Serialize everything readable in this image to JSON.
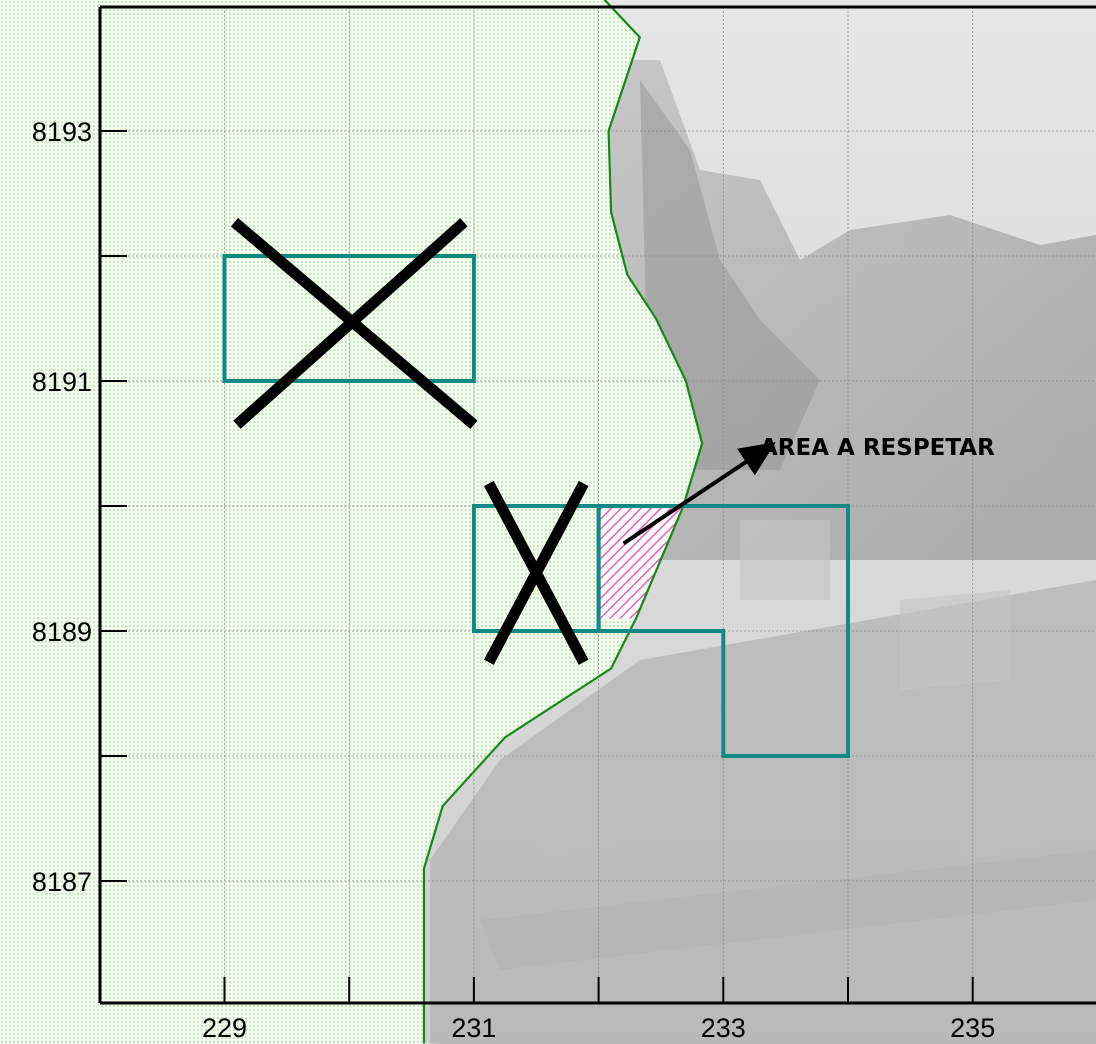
{
  "map": {
    "annotation_label": "AREA A RESPETAR",
    "x_ticks": [
      {
        "value": 229,
        "label": "229"
      },
      {
        "value": 230,
        "label": ""
      },
      {
        "value": 231,
        "label": "231"
      },
      {
        "value": 232,
        "label": ""
      },
      {
        "value": 233,
        "label": "233"
      },
      {
        "value": 234,
        "label": ""
      },
      {
        "value": 235,
        "label": "235"
      }
    ],
    "y_ticks": [
      {
        "value": 8193,
        "label": "8193"
      },
      {
        "value": 8192,
        "label": ""
      },
      {
        "value": 8191,
        "label": "8191"
      },
      {
        "value": 8190,
        "label": ""
      },
      {
        "value": 8189,
        "label": "8189"
      },
      {
        "value": 8188,
        "label": ""
      },
      {
        "value": 8187,
        "label": "8187"
      }
    ],
    "x_range": [
      228,
      237
    ],
    "y_range": [
      8186,
      8194
    ],
    "grid": true,
    "colors": {
      "grid_cell_outline": "#128a84",
      "boundary_line": "#158a15",
      "cross_mark": "#000000",
      "protected_area_hatch": "#e85fc0",
      "land_background": "#c8e8bd",
      "photo_background": "#cfcfcf"
    },
    "crossed_cells": [
      {
        "x": [
          229,
          231
        ],
        "y": [
          8191,
          8192
        ]
      },
      {
        "x": [
          231,
          232
        ],
        "y": [
          8189,
          8190
        ]
      }
    ],
    "concession_outline": [
      [
        232,
        8190
      ],
      [
        234,
        8190
      ],
      [
        234,
        8188
      ],
      [
        233,
        8188
      ],
      [
        233,
        8189
      ],
      [
        232,
        8189
      ]
    ],
    "boundary_line": [
      [
        232.0,
        8194.1
      ],
      [
        232.33,
        8193.75
      ],
      [
        232.08,
        8193.0
      ],
      [
        232.1,
        8192.35
      ],
      [
        232.23,
        8191.85
      ],
      [
        232.46,
        8191.5
      ],
      [
        232.7,
        8191.0
      ],
      [
        232.83,
        8190.5
      ],
      [
        232.68,
        8190.0
      ],
      [
        232.3,
        8189.1
      ],
      [
        232.1,
        8188.7
      ],
      [
        231.25,
        8188.15
      ],
      [
        230.75,
        8187.6
      ],
      [
        230.6,
        8187.1
      ],
      [
        230.6,
        8185.7
      ]
    ],
    "protected_area": [
      [
        232.0,
        8190.0
      ],
      [
        232.68,
        8190.0
      ],
      [
        232.3,
        8189.1
      ],
      [
        232.0,
        8189.1
      ]
    ],
    "annotation_arrow": {
      "from": [
        232.2,
        8189.7
      ],
      "to": [
        233.4,
        8190.5
      ]
    }
  }
}
